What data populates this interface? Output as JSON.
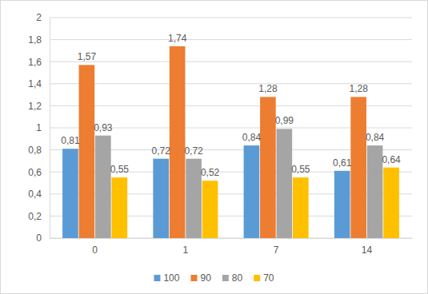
{
  "chart_data": {
    "type": "bar",
    "categories": [
      "0",
      "1",
      "7",
      "14"
    ],
    "series": [
      {
        "name": "100",
        "color": "#5b9bd5",
        "values": [
          0.81,
          0.72,
          0.84,
          0.61
        ],
        "value_labels": [
          "0,81",
          "0,72",
          "0,84",
          "0,61"
        ]
      },
      {
        "name": "90",
        "color": "#ed7d31",
        "values": [
          1.57,
          1.74,
          1.28,
          1.28
        ],
        "value_labels": [
          "1,57",
          "1,74",
          "1,28",
          "1,28"
        ]
      },
      {
        "name": "80",
        "color": "#a5a5a5",
        "values": [
          0.93,
          0.72,
          0.99,
          0.84
        ],
        "value_labels": [
          "0,93",
          "0,72",
          "0,99",
          "0,84"
        ]
      },
      {
        "name": "70",
        "color": "#ffc000",
        "values": [
          0.55,
          0.52,
          0.55,
          0.64
        ],
        "value_labels": [
          "0,55",
          "0,52",
          "0,55",
          "0,64"
        ]
      }
    ],
    "ylim": [
      0,
      2
    ],
    "yticks": [
      0,
      {
        "value": 0.2,
        "label": "0,2"
      },
      {
        "value": 0.4,
        "label": "0,4"
      },
      {
        "value": 0.6,
        "label": "0,6"
      },
      {
        "value": 0.8,
        "label": "0,8"
      },
      1,
      {
        "value": 1.2,
        "label": "1,2"
      },
      {
        "value": 1.4,
        "label": "1,4"
      },
      {
        "value": 1.6,
        "label": "1,6"
      },
      {
        "value": 1.8,
        "label": "1,8"
      },
      2
    ],
    "grid": true,
    "legend": "bottom",
    "data_labels": true
  }
}
